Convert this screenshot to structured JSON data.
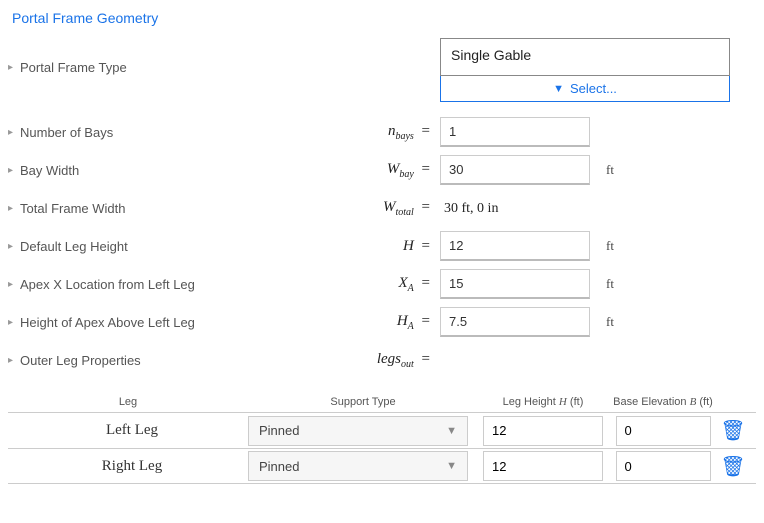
{
  "section_title": "Portal Frame Geometry",
  "frame_type": {
    "label": "Portal Frame Type",
    "value": "Single Gable",
    "select_label": "Select..."
  },
  "fields": {
    "nbays": {
      "label": "Number of Bays",
      "symbol_html": "n<sub>bays</sub>",
      "value": "1",
      "unit": ""
    },
    "wbay": {
      "label": "Bay Width",
      "symbol_html": "W<sub>bay</sub>",
      "value": "30",
      "unit": "ft"
    },
    "wtotal": {
      "label": "Total Frame Width",
      "symbol_html": "W<sub>total</sub>",
      "static": "30 ft, 0 in"
    },
    "h": {
      "label": "Default Leg Height",
      "symbol_html": "H",
      "value": "12",
      "unit": "ft"
    },
    "xa": {
      "label": "Apex X Location from Left Leg",
      "symbol_html": "X<sub>A</sub>",
      "value": "15",
      "unit": "ft"
    },
    "ha": {
      "label": "Height of Apex Above Left Leg",
      "symbol_html": "H<sub>A</sub>",
      "value": "7.5",
      "unit": "ft"
    },
    "legsout": {
      "label": "Outer Leg Properties",
      "symbol_html": "legs<sub>out</sub>"
    }
  },
  "legs_table": {
    "headers": {
      "leg": "Leg",
      "support": "Support Type",
      "height_html": "Leg Height <span class='ith'>H</span> (ft)",
      "base_html": "Base Elevation <span class='ith'>B</span> (ft)"
    },
    "rows": [
      {
        "name": "Left Leg",
        "support": "Pinned",
        "height": "12",
        "base": "0"
      },
      {
        "name": "Right Leg",
        "support": "Pinned",
        "height": "12",
        "base": "0"
      }
    ]
  }
}
